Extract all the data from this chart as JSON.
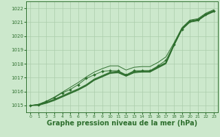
{
  "bg_color": "#cce8cc",
  "grid_color": "#aaccaa",
  "line_color": "#2d6e2d",
  "xlabel": "Graphe pression niveau de la mer (hPa)",
  "xlabel_fontsize": 7,
  "ylim": [
    1014.5,
    1022.5
  ],
  "xlim": [
    -0.5,
    23.5
  ],
  "yticks": [
    1015,
    1016,
    1017,
    1018,
    1019,
    1020,
    1021,
    1022
  ],
  "xticks": [
    0,
    1,
    2,
    3,
    4,
    5,
    6,
    7,
    8,
    9,
    10,
    11,
    12,
    13,
    14,
    15,
    16,
    17,
    18,
    19,
    20,
    21,
    22,
    23
  ],
  "straight_lines": [
    [
      1015.0,
      1015.0,
      1015.15,
      1015.35,
      1015.6,
      1015.85,
      1016.1,
      1016.4,
      1016.8,
      1017.05,
      1017.3,
      1017.35,
      1017.1,
      1017.35,
      1017.4,
      1017.4,
      1017.7,
      1018.0,
      1019.3,
      1020.45,
      1021.0,
      1021.1,
      1021.5,
      1021.75
    ],
    [
      1015.0,
      1015.02,
      1015.18,
      1015.38,
      1015.63,
      1015.88,
      1016.13,
      1016.43,
      1016.83,
      1017.08,
      1017.33,
      1017.38,
      1017.13,
      1017.38,
      1017.43,
      1017.43,
      1017.73,
      1018.03,
      1019.33,
      1020.48,
      1021.03,
      1021.13,
      1021.53,
      1021.78
    ],
    [
      1015.0,
      1015.04,
      1015.21,
      1015.41,
      1015.66,
      1015.91,
      1016.16,
      1016.46,
      1016.86,
      1017.11,
      1017.36,
      1017.41,
      1017.16,
      1017.41,
      1017.46,
      1017.46,
      1017.76,
      1018.06,
      1019.36,
      1020.51,
      1021.06,
      1021.16,
      1021.56,
      1021.81
    ],
    [
      1015.0,
      1015.06,
      1015.24,
      1015.44,
      1015.7,
      1015.95,
      1016.2,
      1016.5,
      1016.9,
      1017.15,
      1017.4,
      1017.45,
      1017.2,
      1017.45,
      1017.5,
      1017.5,
      1017.8,
      1018.1,
      1019.4,
      1020.55,
      1021.1,
      1021.2,
      1021.6,
      1021.85
    ]
  ],
  "marker_line_x": [
    0,
    1,
    2,
    3,
    4,
    5,
    6,
    7,
    8,
    9,
    10,
    11,
    12,
    13,
    14,
    15,
    16,
    17,
    18,
    19,
    20,
    21,
    22,
    23
  ],
  "marker_line_y": [
    1015.0,
    1015.05,
    1015.3,
    1015.55,
    1015.9,
    1016.15,
    1016.5,
    1016.95,
    1017.2,
    1017.45,
    1017.5,
    1017.5,
    1017.2,
    1017.5,
    1017.5,
    1017.5,
    1017.85,
    1018.25,
    1019.4,
    1020.5,
    1021.05,
    1021.15,
    1021.55,
    1021.8
  ],
  "top_line_y": [
    1015.0,
    1015.08,
    1015.3,
    1015.6,
    1015.95,
    1016.3,
    1016.65,
    1017.05,
    1017.4,
    1017.65,
    1017.85,
    1017.85,
    1017.55,
    1017.75,
    1017.8,
    1017.8,
    1018.1,
    1018.5,
    1019.5,
    1020.6,
    1021.15,
    1021.25,
    1021.65,
    1021.9
  ]
}
